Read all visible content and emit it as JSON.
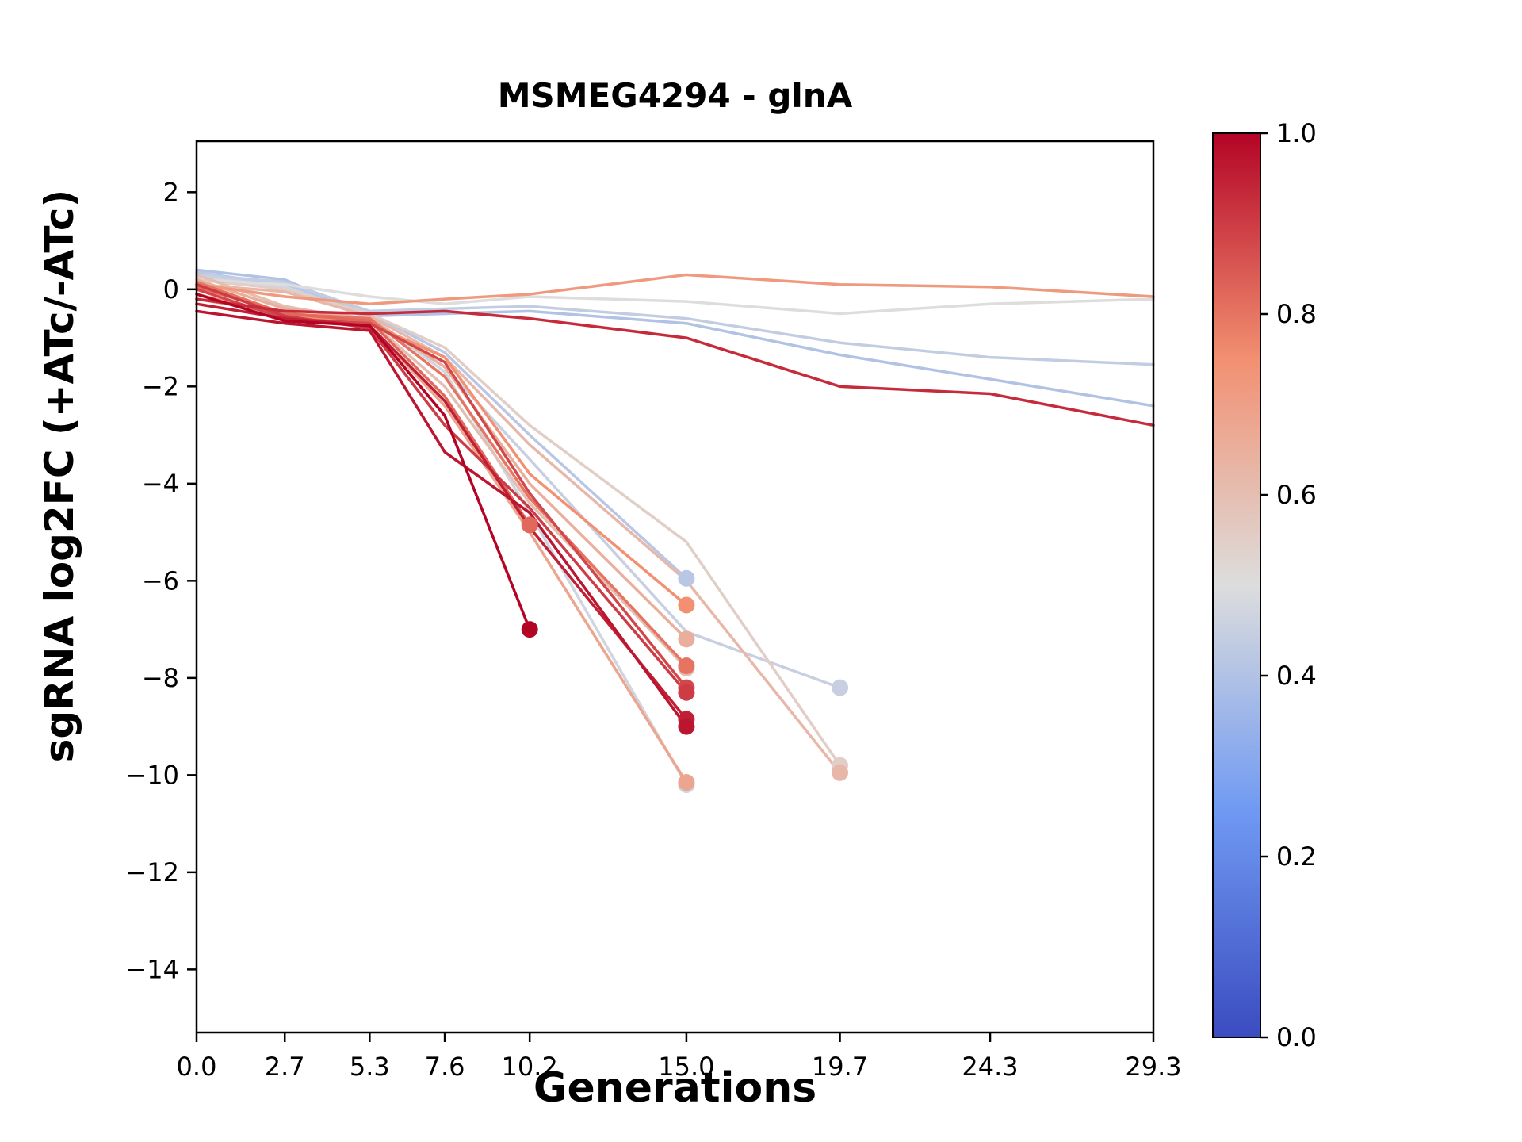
{
  "figure": {
    "title": "MSMEG4294 - glnA",
    "xlabel": "Generations",
    "ylabel": "sgRNA log2FC (+ATc/-ATc)"
  },
  "chart_data": {
    "type": "line",
    "title": "MSMEG4294 - glnA",
    "xlabel": "Generations",
    "ylabel": "sgRNA log2FC (+ATc/-ATc)",
    "xlim": [
      0,
      29.3
    ],
    "ylim": [
      -15.3,
      3.05
    ],
    "grid": false,
    "xticks": [
      0.0,
      2.7,
      5.3,
      7.6,
      10.2,
      15.0,
      19.7,
      24.3,
      29.3
    ],
    "xtick_labels": [
      "0.0",
      "2.7",
      "5.3",
      "7.6",
      "10.2",
      "15.0",
      "19.7",
      "24.3",
      "29.3"
    ],
    "yticks": [
      2,
      0,
      -2,
      -4,
      -6,
      -8,
      -10,
      -12,
      -14
    ],
    "ytick_labels": [
      "2",
      "0",
      "−2",
      "−4",
      "−6",
      "−8",
      "−10",
      "−12",
      "−14"
    ],
    "colormap": "coolwarm",
    "colormap_stops": [
      [
        0.0,
        [
          59,
          76,
          192
        ]
      ],
      [
        0.25,
        [
          111,
          153,
          242
        ]
      ],
      [
        0.5,
        [
          221,
          221,
          221
        ]
      ],
      [
        0.75,
        [
          242,
          144,
          113
        ]
      ],
      [
        1.0,
        [
          180,
          4,
          38
        ]
      ]
    ],
    "colorbar": {
      "min": 0.0,
      "max": 1.0,
      "ticks": [
        0.0,
        0.2,
        0.4,
        0.6,
        0.8,
        1.0
      ],
      "tick_labels": [
        "0.0",
        "0.2",
        "0.4",
        "0.6",
        "0.8",
        "1.0"
      ]
    },
    "series": [
      {
        "color_value": 0.72,
        "end_marker": false,
        "x": [
          0,
          2.7,
          5.3,
          7.6,
          10.2,
          15.0,
          19.7,
          24.3,
          29.3
        ],
        "y": [
          0.1,
          -0.15,
          -0.3,
          -0.2,
          -0.1,
          0.3,
          0.1,
          0.05,
          -0.15
        ]
      },
      {
        "color_value": 0.5,
        "end_marker": false,
        "x": [
          0,
          2.7,
          5.3,
          7.6,
          10.2,
          15.0,
          19.7,
          24.3,
          29.3
        ],
        "y": [
          0.2,
          0.1,
          -0.15,
          -0.3,
          -0.15,
          -0.25,
          -0.5,
          -0.3,
          -0.2
        ]
      },
      {
        "color_value": 0.44,
        "end_marker": false,
        "x": [
          0,
          2.7,
          5.3,
          7.6,
          10.2,
          15.0,
          19.7,
          24.3,
          29.3
        ],
        "y": [
          0.3,
          0.15,
          -0.45,
          -0.4,
          -0.35,
          -0.6,
          -1.1,
          -1.4,
          -1.55
        ]
      },
      {
        "color_value": 0.4,
        "end_marker": false,
        "x": [
          0,
          2.7,
          5.3,
          7.6,
          10.2,
          15.0,
          19.7,
          24.3,
          29.3
        ],
        "y": [
          0.4,
          0.2,
          -0.55,
          -0.5,
          -0.45,
          -0.7,
          -1.35,
          -1.85,
          -2.4
        ]
      },
      {
        "color_value": 0.93,
        "end_marker": false,
        "x": [
          0,
          2.7,
          5.3,
          7.6,
          10.2,
          15.0,
          19.7,
          24.3,
          29.3
        ],
        "y": [
          -0.2,
          -0.45,
          -0.5,
          -0.45,
          -0.6,
          -1.0,
          -2.0,
          -2.15,
          -2.8
        ]
      },
      {
        "color_value": 1.0,
        "end_marker": true,
        "x": [
          0,
          2.7,
          5.3,
          7.6,
          10.2
        ],
        "y": [
          -0.1,
          -0.65,
          -0.75,
          -2.6,
          -7.0
        ]
      },
      {
        "color_value": 0.82,
        "end_marker": true,
        "x": [
          0,
          2.7,
          5.3,
          7.6,
          10.2
        ],
        "y": [
          0.05,
          -0.5,
          -0.65,
          -2.2,
          -4.85
        ]
      },
      {
        "color_value": 0.97,
        "end_marker": true,
        "x": [
          0,
          2.7,
          5.3,
          7.6,
          10.2,
          15.0
        ],
        "y": [
          -0.45,
          -0.7,
          -0.85,
          -3.35,
          -4.6,
          -9.0
        ]
      },
      {
        "color_value": 0.9,
        "end_marker": true,
        "x": [
          0,
          2.7,
          5.3,
          7.6,
          10.2,
          15.0
        ],
        "y": [
          0.1,
          -0.55,
          -0.8,
          -2.8,
          -4.5,
          -8.3
        ]
      },
      {
        "color_value": 0.95,
        "end_marker": true,
        "x": [
          0,
          2.7,
          5.3,
          7.6,
          10.2,
          15.0
        ],
        "y": [
          -0.3,
          -0.6,
          -0.75,
          -2.3,
          -4.9,
          -8.85
        ]
      },
      {
        "color_value": 0.88,
        "end_marker": true,
        "x": [
          0,
          2.7,
          5.3,
          7.6,
          10.2,
          15.0
        ],
        "y": [
          0.0,
          -0.6,
          -0.7,
          -1.5,
          -4.2,
          -8.2
        ]
      },
      {
        "color_value": 0.8,
        "end_marker": true,
        "x": [
          0,
          2.7,
          5.3,
          7.6,
          10.2,
          15.0
        ],
        "y": [
          0.15,
          -0.5,
          -0.6,
          -1.8,
          -4.3,
          -7.75
        ]
      },
      {
        "color_value": 0.75,
        "end_marker": true,
        "x": [
          0,
          2.7,
          5.3,
          7.6,
          10.2,
          15.0
        ],
        "y": [
          -0.1,
          -0.55,
          -0.7,
          -1.4,
          -3.8,
          -6.5
        ]
      },
      {
        "color_value": 0.65,
        "end_marker": true,
        "x": [
          0,
          2.7,
          5.3,
          7.6,
          10.2,
          15.0
        ],
        "y": [
          0.2,
          -0.4,
          -0.6,
          -1.6,
          -4.0,
          -7.2
        ]
      },
      {
        "color_value": 0.6,
        "end_marker": true,
        "x": [
          0,
          2.7,
          5.3,
          7.6,
          10.2,
          15.0
        ],
        "y": [
          0.3,
          -0.35,
          -0.65,
          -2.0,
          -4.4,
          -7.8
        ]
      },
      {
        "color_value": 0.68,
        "end_marker": true,
        "x": [
          0,
          2.7,
          5.3,
          7.6,
          10.2,
          15.0
        ],
        "y": [
          -0.2,
          -0.5,
          -0.75,
          -2.4,
          -5.0,
          -10.15
        ]
      },
      {
        "color_value": 0.42,
        "end_marker": true,
        "x": [
          0,
          2.7,
          5.3,
          7.6,
          10.2,
          15.0
        ],
        "y": [
          0.35,
          0.1,
          -0.5,
          -1.3,
          -3.0,
          -5.95
        ]
      },
      {
        "color_value": 0.45,
        "end_marker": true,
        "x": [
          0,
          2.7,
          5.3,
          7.6,
          10.2,
          15.0,
          19.7
        ],
        "y": [
          0.3,
          0.05,
          -0.6,
          -1.6,
          -3.5,
          -7.05,
          -8.2
        ]
      },
      {
        "color_value": 0.55,
        "end_marker": true,
        "x": [
          0,
          2.7,
          5.3,
          7.6,
          10.2,
          15.0,
          19.7
        ],
        "y": [
          0.2,
          0.0,
          -0.5,
          -1.2,
          -2.8,
          -5.2,
          -9.8
        ]
      },
      {
        "color_value": 0.62,
        "end_marker": true,
        "x": [
          0,
          2.7,
          5.3,
          7.6,
          10.2,
          15.0,
          19.7
        ],
        "y": [
          0.1,
          -0.05,
          -0.55,
          -1.4,
          -3.2,
          -6.0,
          -9.95
        ]
      },
      {
        "color_value": 0.47,
        "end_marker": true,
        "x": [
          0,
          2.7,
          5.3,
          7.6,
          10.2,
          15.0
        ],
        "y": [
          0.25,
          0.05,
          -0.55,
          -1.7,
          -4.6,
          -10.2
        ]
      }
    ]
  }
}
